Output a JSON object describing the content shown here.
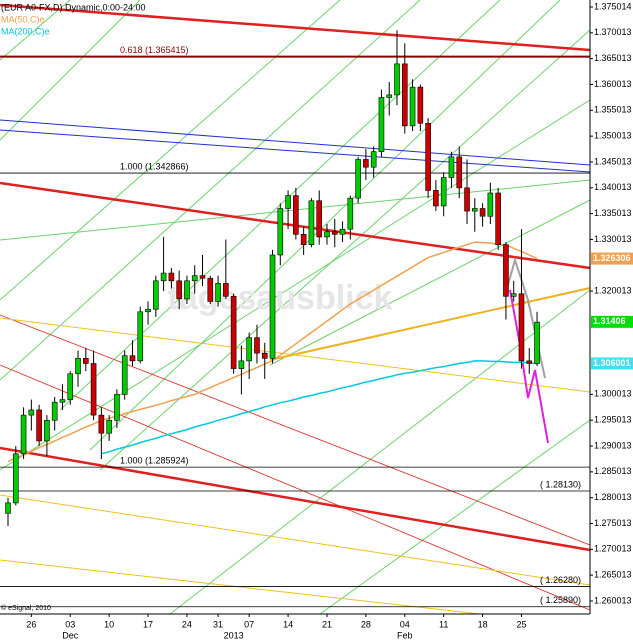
{
  "chart_data": {
    "type": "candlestick",
    "title": "(EUR A0-FX,D) Dynamic,0:00-24:00",
    "up_color": "#00cc00",
    "down_color": "#cc0000",
    "open": [
      1.277,
      1.279,
      1.2885,
      1.296,
      1.297,
      1.291,
      1.295,
      1.2985,
      1.299,
      1.304,
      1.307,
      1.306,
      1.296,
      1.2925,
      1.295,
      1.3,
      1.3075,
      1.3065,
      1.316,
      1.3165,
      1.322,
      1.3235,
      1.322,
      1.3185,
      1.322,
      1.323,
      1.3225,
      1.318,
      1.3215,
      1.319,
      1.305,
      1.3065,
      1.311,
      1.308,
      1.307,
      1.327,
      1.336,
      1.3385,
      1.331,
      1.329,
      1.3375,
      1.3305,
      1.3315,
      1.331,
      1.332,
      1.338,
      1.3455,
      1.344,
      1.347,
      1.3575,
      1.358,
      1.364,
      1.352,
      1.3595,
      1.3525,
      1.3395,
      1.3365,
      1.342,
      1.346,
      1.34,
      1.3355,
      1.336,
      1.3345,
      1.339,
      1.329,
      1.319,
      1.3195,
      1.3065,
      1.306
    ],
    "high": [
      1.28,
      1.29,
      1.2975,
      1.299,
      1.298,
      1.296,
      1.2995,
      1.302,
      1.3045,
      1.3085,
      1.309,
      1.3085,
      1.2975,
      1.296,
      1.301,
      1.3085,
      1.3105,
      1.317,
      1.318,
      1.323,
      1.3305,
      1.3245,
      1.324,
      1.323,
      1.325,
      1.327,
      1.323,
      1.323,
      1.33,
      1.3195,
      1.3095,
      1.312,
      1.3135,
      1.31,
      1.328,
      1.337,
      1.3395,
      1.34,
      1.3325,
      1.338,
      1.3395,
      1.333,
      1.334,
      1.3335,
      1.3385,
      1.346,
      1.3475,
      1.348,
      1.359,
      1.3605,
      1.3705,
      1.368,
      1.361,
      1.36,
      1.3535,
      1.3415,
      1.343,
      1.347,
      1.348,
      1.3455,
      1.338,
      1.337,
      1.341,
      1.34,
      1.3295,
      1.322,
      1.332,
      1.309,
      1.316
    ],
    "low": [
      1.2745,
      1.2785,
      1.2875,
      1.293,
      1.29,
      1.288,
      1.293,
      1.297,
      1.298,
      1.3015,
      1.3045,
      1.295,
      1.2875,
      1.291,
      1.2935,
      1.299,
      1.3055,
      1.306,
      1.3135,
      1.315,
      1.32,
      1.3205,
      1.3165,
      1.3175,
      1.3195,
      1.321,
      1.3175,
      1.317,
      1.3185,
      1.304,
      1.3,
      1.303,
      1.306,
      1.303,
      1.306,
      1.325,
      1.332,
      1.33,
      1.327,
      1.3285,
      1.329,
      1.329,
      1.3285,
      1.3295,
      1.33,
      1.337,
      1.3415,
      1.342,
      1.346,
      1.354,
      1.356,
      1.3505,
      1.351,
      1.351,
      1.338,
      1.3355,
      1.3345,
      1.34,
      1.338,
      1.333,
      1.3315,
      1.3325,
      1.333,
      1.328,
      1.3145,
      1.318,
      1.305,
      1.304,
      1.3055
    ],
    "close": [
      1.279,
      1.2885,
      1.296,
      1.297,
      1.291,
      1.295,
      1.2985,
      1.299,
      1.304,
      1.307,
      1.306,
      1.296,
      1.2925,
      1.295,
      1.3,
      1.3075,
      1.3065,
      1.316,
      1.3165,
      1.322,
      1.3235,
      1.322,
      1.3185,
      1.322,
      1.323,
      1.3225,
      1.318,
      1.3215,
      1.319,
      1.305,
      1.3065,
      1.311,
      1.308,
      1.307,
      1.327,
      1.336,
      1.3385,
      1.331,
      1.329,
      1.3375,
      1.3305,
      1.3315,
      1.331,
      1.332,
      1.338,
      1.3455,
      1.344,
      1.347,
      1.3575,
      1.358,
      1.364,
      1.352,
      1.3595,
      1.3525,
      1.3395,
      1.3365,
      1.342,
      1.346,
      1.34,
      1.3355,
      1.336,
      1.3345,
      1.339,
      1.329,
      1.319,
      1.3195,
      1.3065,
      1.306,
      1.314
    ],
    "overlays": [
      {
        "name": "MA(50,C)e",
        "color": "#f0a050",
        "values": [
          1.287,
          1.2877,
          1.2883,
          1.289,
          1.2897,
          1.2903,
          1.291,
          1.2917,
          1.2923,
          1.293,
          1.2937,
          1.2943,
          1.295,
          1.2954,
          1.2958,
          1.2963,
          1.2967,
          1.2971,
          1.2975,
          1.2979,
          1.2983,
          1.2988,
          1.2992,
          1.2996,
          1.3,
          1.3007,
          1.3013,
          1.302,
          1.3026,
          1.3033,
          1.3039,
          1.3046,
          1.3052,
          1.3059,
          1.3065,
          1.3076,
          1.3087,
          1.3098,
          1.3109,
          1.312,
          1.3131,
          1.3142,
          1.3153,
          1.3164,
          1.3175,
          1.3184,
          1.3193,
          1.3202,
          1.3211,
          1.322,
          1.3229,
          1.3238,
          1.3247,
          1.3256,
          1.3265,
          1.327,
          1.3275,
          1.328,
          1.3285,
          1.329,
          1.3295,
          1.3294,
          1.3293,
          1.3291,
          1.329,
          1.3283,
          1.3277,
          1.327,
          1.3263
        ]
      },
      {
        "name": "MA(200,C)e",
        "color": "#00c8e0",
        "values": [
          null,
          null,
          null,
          null,
          null,
          null,
          null,
          null,
          null,
          null,
          null,
          null,
          1.2885,
          1.2889,
          1.2894,
          1.2898,
          1.2902,
          1.2907,
          1.2911,
          1.2915,
          1.292,
          1.2924,
          1.2928,
          1.2932,
          1.2937,
          1.2941,
          1.2945,
          1.295,
          1.2954,
          1.2958,
          1.2963,
          1.2967,
          1.2971,
          1.2976,
          1.298,
          1.2984,
          1.2987,
          1.2991,
          1.2995,
          1.2998,
          1.3002,
          1.3005,
          1.3009,
          1.3013,
          1.3016,
          1.302,
          1.3024,
          1.3027,
          1.3031,
          1.3034,
          1.3038,
          1.3041,
          1.3043,
          1.3046,
          1.3049,
          1.3052,
          1.3054,
          1.3057,
          1.306,
          1.3062,
          1.3065,
          1.3065,
          1.3064,
          1.3064,
          1.3063,
          1.3062,
          1.3062,
          1.3061,
          1.306
        ]
      }
    ],
    "ylim": [
      1.25749,
      1.37637
    ],
    "yticks": [
      1.375014,
      1.370013,
      1.365013,
      1.360013,
      1.355013,
      1.350013,
      1.345013,
      1.340013,
      1.335013,
      1.330013,
      1.320013,
      1.300013,
      1.295013,
      1.290013,
      1.285013,
      1.280013,
      1.275013,
      1.270013,
      1.265013,
      1.260013
    ],
    "xticks": [
      {
        "value": 3,
        "label": "26"
      },
      {
        "value": 8,
        "label": "03"
      },
      {
        "value": 13,
        "label": "10"
      },
      {
        "value": 18,
        "label": "17"
      },
      {
        "value": 23,
        "label": "24"
      },
      {
        "value": 27,
        "label": "31"
      },
      {
        "value": 31,
        "label": "07"
      },
      {
        "value": 36,
        "label": "14"
      },
      {
        "value": 41,
        "label": "21"
      },
      {
        "value": 46,
        "label": "28"
      },
      {
        "value": 51,
        "label": "04"
      },
      {
        "value": 56,
        "label": "11"
      },
      {
        "value": 61,
        "label": "18"
      },
      {
        "value": 66,
        "label": "25"
      }
    ],
    "xlabels_secondary": [
      {
        "value": 8,
        "label": "Dec"
      },
      {
        "value": 29,
        "label": "2013"
      },
      {
        "value": 51,
        "label": "Feb"
      }
    ],
    "levels": [
      {
        "value": 1.365415,
        "label": "0.618 (1.365415)",
        "color": "#8b0000"
      },
      {
        "value": 1.342866,
        "label": "1.000 (1.342866)",
        "color": "#000000"
      },
      {
        "value": 1.285924,
        "label": "1.000 (1.285924)",
        "color": "#000000"
      },
      {
        "value": 1.2813,
        "label": "( 1.28130)",
        "color": "#000000"
      },
      {
        "value": 1.2628,
        "label": "( 1.26280)",
        "color": "#000000"
      },
      {
        "value": 1.2589,
        "label": "( 1.25890)",
        "color": "#000000"
      }
    ],
    "markers": [
      {
        "value": 1.326306,
        "label": "1.326306",
        "color": "#f0a050"
      },
      {
        "value": 1.31406,
        "label": "1.31406",
        "color": "#00dd00"
      },
      {
        "value": 1.306001,
        "label": "1.306001",
        "color": "#40e0f0"
      }
    ],
    "watermark": "tagesausblick",
    "copyright": "© eSignal, 2010"
  }
}
